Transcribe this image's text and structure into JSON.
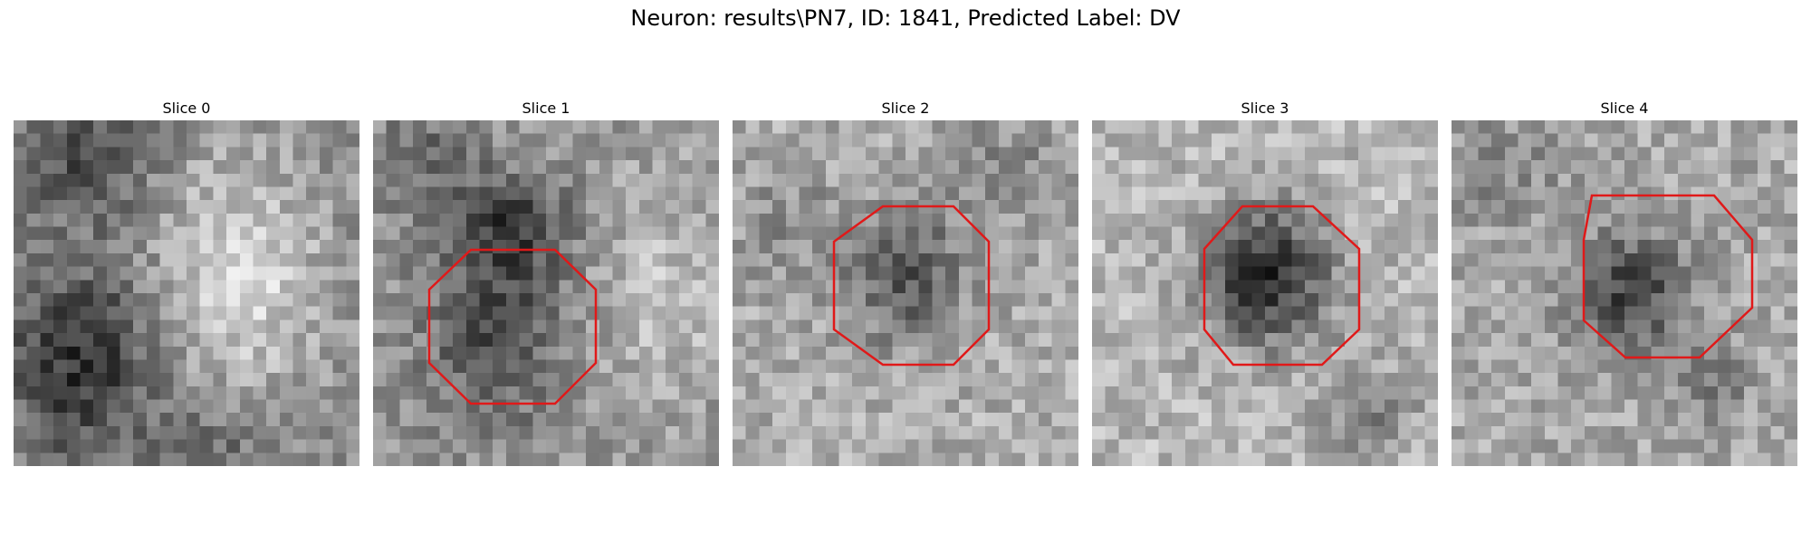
{
  "figure": {
    "title": "Neuron: results\\PN7, ID: 1841, Predicted Label: DV"
  },
  "roi_color": "#e01919",
  "panels": [
    {
      "title": "Slice 0",
      "has_roi": false
    },
    {
      "title": "Slice 1",
      "has_roi": true
    },
    {
      "title": "Slice 2",
      "has_roi": true
    },
    {
      "title": "Slice 3",
      "has_roi": true
    },
    {
      "title": "Slice 4",
      "has_roi": true
    }
  ]
}
